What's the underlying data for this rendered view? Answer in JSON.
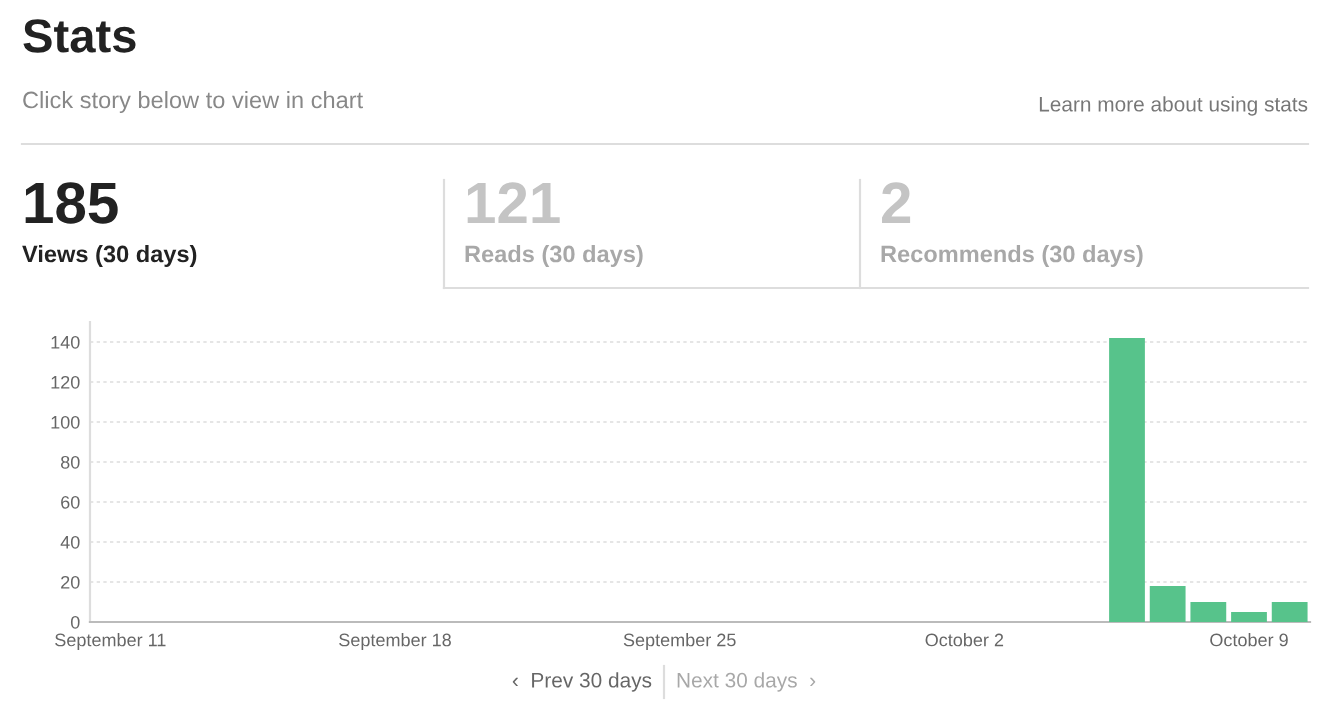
{
  "chart_data": {
    "type": "bar",
    "title": "Stats",
    "subtitle": "Click story below to view in chart",
    "annotations": [
      "Learn more about using stats",
      "185",
      "Views (30 days)",
      "121",
      "Reads (30 days)",
      "2",
      "Recommends (30 days)",
      "‹  Prev 30 days",
      "Next 30 days  ›"
    ],
    "categories": [
      "September 11",
      null,
      null,
      null,
      null,
      null,
      null,
      "September 18",
      null,
      null,
      null,
      null,
      null,
      null,
      "September 25",
      null,
      null,
      null,
      null,
      null,
      null,
      "October 2",
      null,
      null,
      null,
      null,
      null,
      null,
      "October 9",
      null
    ],
    "values": [
      0,
      0,
      0,
      0,
      0,
      0,
      0,
      0,
      0,
      0,
      0,
      0,
      0,
      0,
      0,
      0,
      0,
      0,
      0,
      0,
      0,
      0,
      0,
      0,
      0,
      142,
      18,
      10,
      5,
      10
    ],
    "color": "#57c38b",
    "ylim": [
      0,
      150
    ],
    "yticks": [
      0,
      20,
      40,
      60,
      80,
      100,
      120,
      140
    ],
    "grid": "y"
  }
}
